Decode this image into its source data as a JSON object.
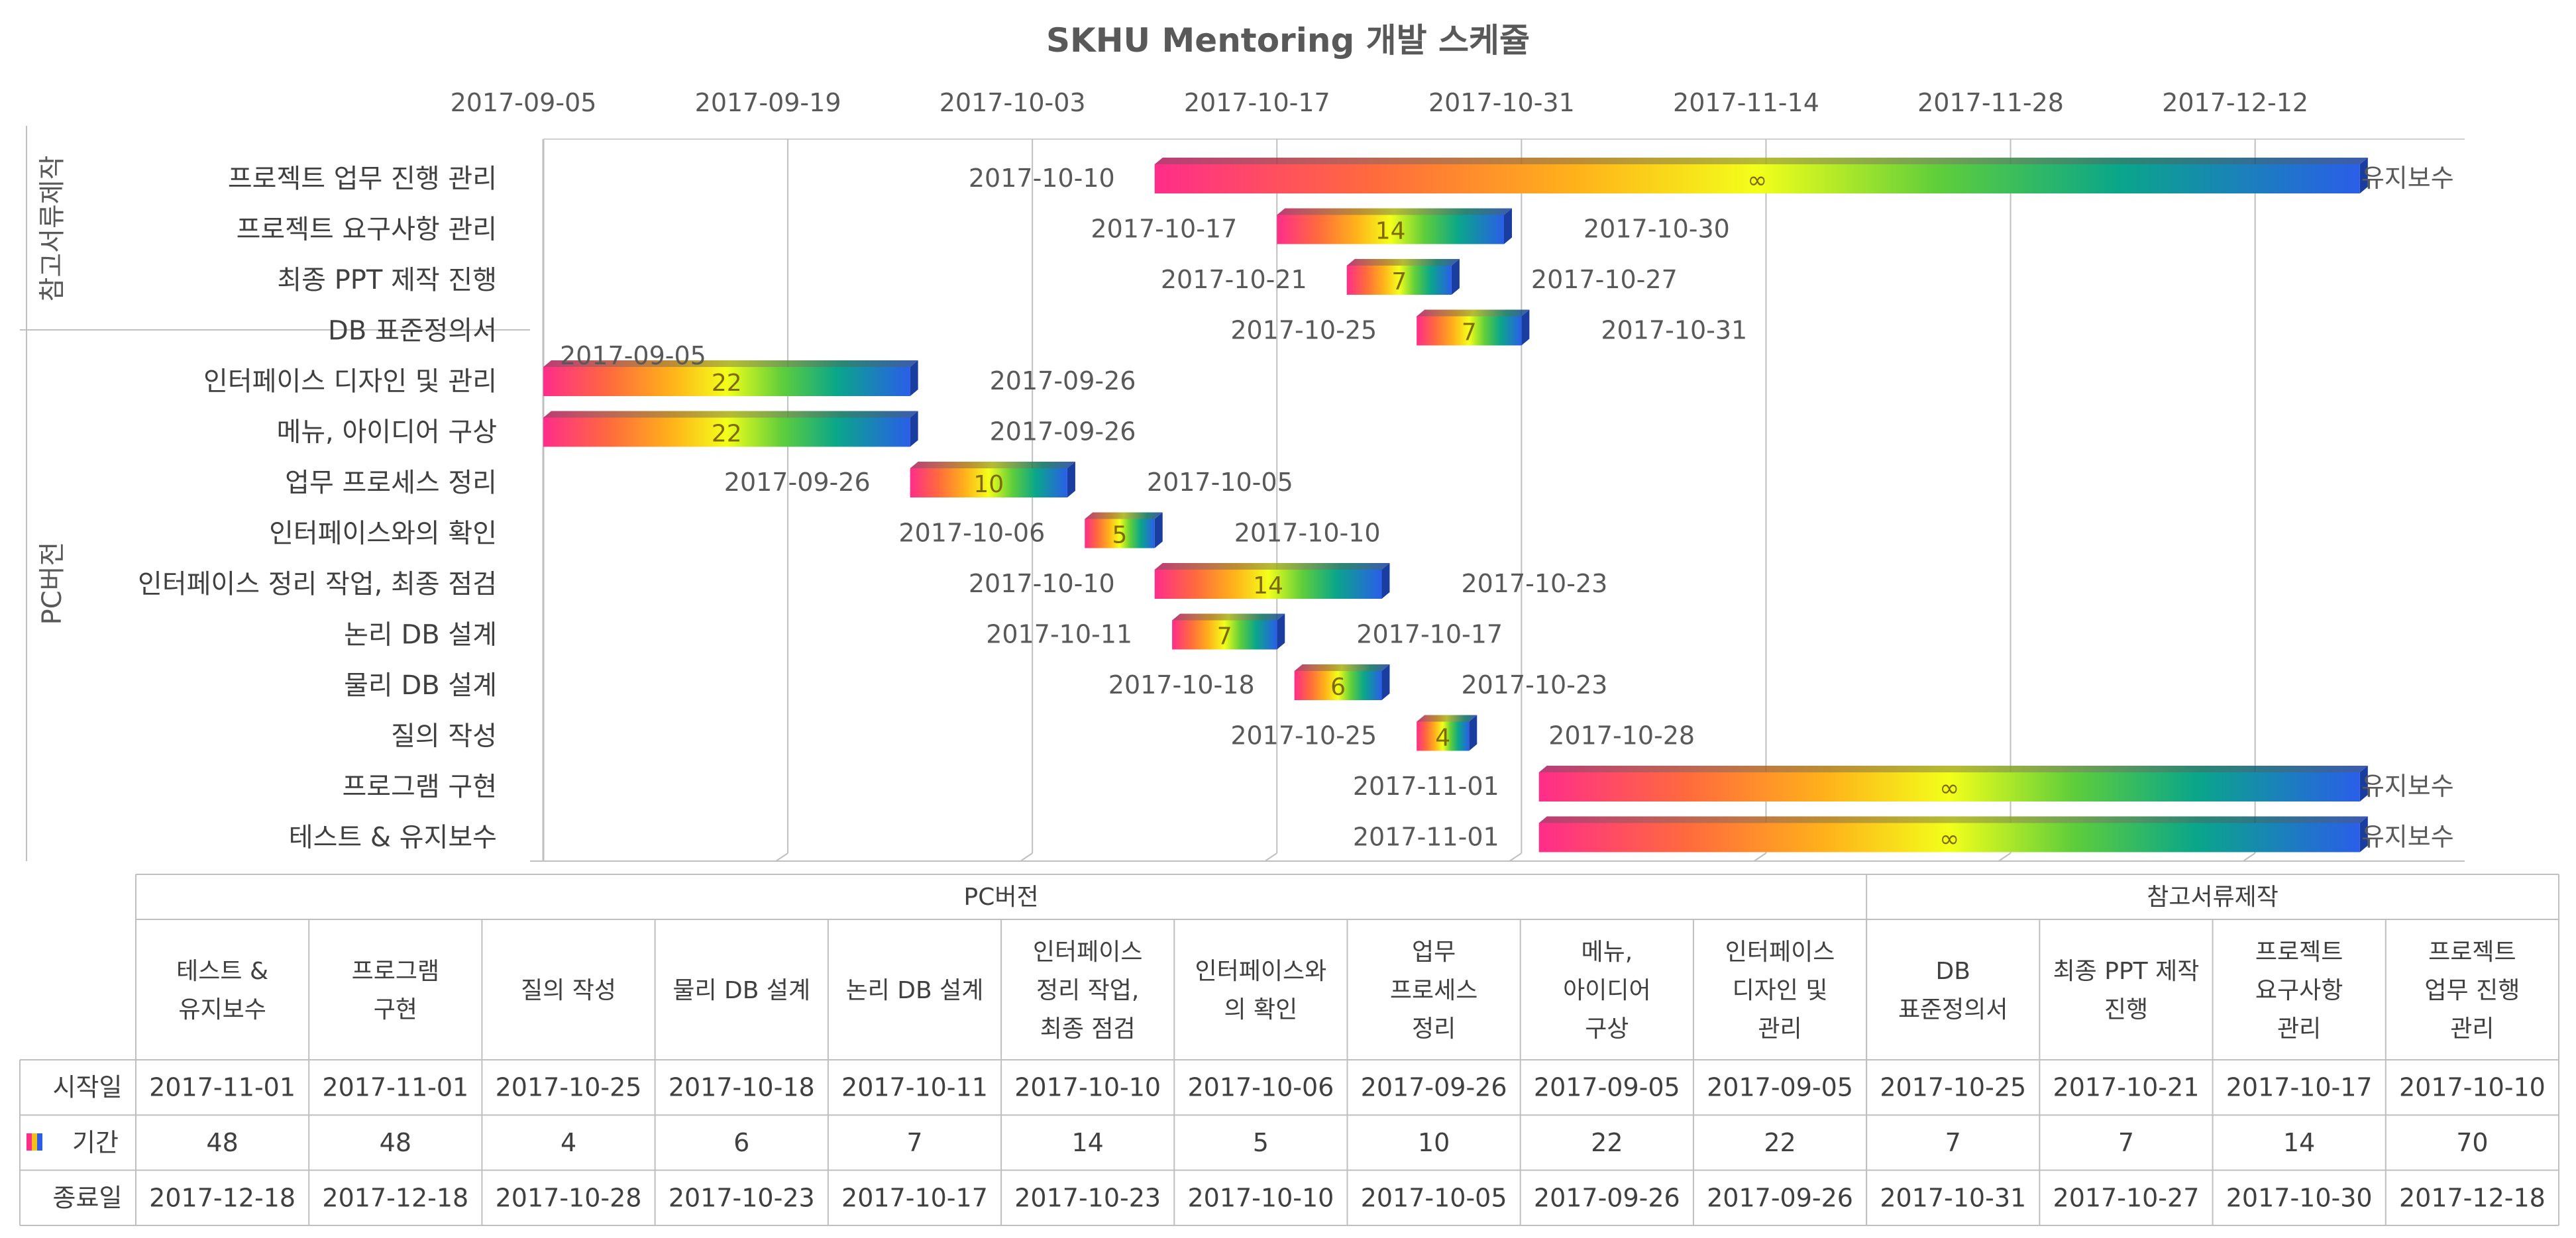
{
  "chart_data": {
    "type": "bar",
    "title": "SKHU Mentoring 개발 스케쥴",
    "x_ticks": [
      "2017-09-05",
      "2017-09-19",
      "2017-10-03",
      "2017-10-17",
      "2017-10-31",
      "2017-11-14",
      "2017-11-28",
      "2017-12-12"
    ],
    "x_range": [
      "2017-09-05",
      "2017-12-18"
    ],
    "grid": true,
    "groups": [
      {
        "name": "참고서류제작",
        "categories": [
          "프로젝트 업무 진행 관리",
          "프로젝트 요구사항 관리",
          "최종 PPT 제작 진행",
          "DB 표준정의서"
        ]
      },
      {
        "name": "PC버전",
        "categories": [
          "인터페이스 디자인 및 관리",
          "메뉴, 아이디어 구상",
          "업무 프로세스 정리",
          "인터페이스와의 확인",
          "인터페이스 정리 작업, 최종 점검",
          "논리 DB 설계",
          "물리 DB 설계",
          "질의 작성",
          "프로그램 구현",
          "테스트 & 유지보수"
        ]
      }
    ],
    "tasks": [
      {
        "name": "프로젝트 업무 진행 관리",
        "start": "2017-10-10",
        "end": "2017-12-18",
        "duration": 70,
        "value_label": "∞",
        "end_label": "유지보수"
      },
      {
        "name": "프로젝트 요구사항 관리",
        "start": "2017-10-17",
        "end": "2017-10-30",
        "duration": 14,
        "value_label": "14",
        "end_label": "2017-10-30"
      },
      {
        "name": "최종 PPT 제작 진행",
        "start": "2017-10-21",
        "end": "2017-10-27",
        "duration": 7,
        "value_label": "7",
        "end_label": "2017-10-27"
      },
      {
        "name": "DB 표준정의서",
        "start": "2017-10-25",
        "end": "2017-10-31",
        "duration": 7,
        "value_label": "7",
        "end_label": "2017-10-31"
      },
      {
        "name": "인터페이스 디자인 및 관리",
        "start": "2017-09-05",
        "end": "2017-09-26",
        "duration": 22,
        "value_label": "22",
        "end_label": "2017-09-26"
      },
      {
        "name": "메뉴, 아이디어 구상",
        "start": "2017-09-05",
        "end": "2017-09-26",
        "duration": 22,
        "value_label": "22",
        "end_label": "2017-09-26"
      },
      {
        "name": "업무 프로세스 정리",
        "start": "2017-09-26",
        "end": "2017-10-05",
        "duration": 10,
        "value_label": "10",
        "end_label": "2017-10-05"
      },
      {
        "name": "인터페이스와의 확인",
        "start": "2017-10-06",
        "end": "2017-10-10",
        "duration": 5,
        "value_label": "5",
        "end_label": "2017-10-10"
      },
      {
        "name": "인터페이스 정리 작업, 최종 점검",
        "start": "2017-10-10",
        "end": "2017-10-23",
        "duration": 14,
        "value_label": "14",
        "end_label": "2017-10-23"
      },
      {
        "name": "논리 DB 설계",
        "start": "2017-10-11",
        "end": "2017-10-17",
        "duration": 7,
        "value_label": "7",
        "end_label": "2017-10-17"
      },
      {
        "name": "물리 DB 설계",
        "start": "2017-10-18",
        "end": "2017-10-23",
        "duration": 6,
        "value_label": "6",
        "end_label": "2017-10-23"
      },
      {
        "name": "질의 작성",
        "start": "2017-10-25",
        "end": "2017-10-28",
        "duration": 4,
        "value_label": "4",
        "end_label": "2017-10-28"
      },
      {
        "name": "프로그램 구현",
        "start": "2017-11-01",
        "end": "2017-12-18",
        "duration": 48,
        "value_label": "∞",
        "end_label": "유지보수"
      },
      {
        "name": "테스트 & 유지보수",
        "start": "2017-11-01",
        "end": "2017-12-18",
        "duration": 48,
        "value_label": "∞",
        "end_label": "유지보수"
      }
    ],
    "table": {
      "group_headers": [
        {
          "name": "PC버전",
          "span": 10
        },
        {
          "name": "참고서류제작",
          "span": 4
        }
      ],
      "columns": [
        {
          "lines": [
            "테스트 &",
            "유지보수"
          ],
          "start": "2017-11-01",
          "duration": "48",
          "end": "2017-12-18"
        },
        {
          "lines": [
            "프로그램",
            "구현"
          ],
          "start": "2017-11-01",
          "duration": "48",
          "end": "2017-12-18"
        },
        {
          "lines": [
            "질의 작성"
          ],
          "start": "2017-10-25",
          "duration": "4",
          "end": "2017-10-28"
        },
        {
          "lines": [
            "물리 DB 설계"
          ],
          "start": "2017-10-18",
          "duration": "6",
          "end": "2017-10-23"
        },
        {
          "lines": [
            "논리 DB 설계"
          ],
          "start": "2017-10-11",
          "duration": "7",
          "end": "2017-10-17"
        },
        {
          "lines": [
            "인터페이스",
            "정리 작업,",
            "최종 점검"
          ],
          "start": "2017-10-10",
          "duration": "14",
          "end": "2017-10-23"
        },
        {
          "lines": [
            "인터페이스와",
            "의 확인"
          ],
          "start": "2017-10-06",
          "duration": "5",
          "end": "2017-10-10"
        },
        {
          "lines": [
            "업무",
            "프로세스",
            "정리"
          ],
          "start": "2017-09-26",
          "duration": "10",
          "end": "2017-10-05"
        },
        {
          "lines": [
            "메뉴,",
            "아이디어",
            "구상"
          ],
          "start": "2017-09-05",
          "duration": "22",
          "end": "2017-09-26"
        },
        {
          "lines": [
            "인터페이스",
            "디자인 및",
            "관리"
          ],
          "start": "2017-09-05",
          "duration": "22",
          "end": "2017-09-26"
        },
        {
          "lines": [
            "DB",
            "표준정의서"
          ],
          "start": "2017-10-25",
          "duration": "7",
          "end": "2017-10-31"
        },
        {
          "lines": [
            "최종 PPT 제작",
            "진행"
          ],
          "start": "2017-10-21",
          "duration": "7",
          "end": "2017-10-27"
        },
        {
          "lines": [
            "프로젝트",
            "요구사항",
            "관리"
          ],
          "start": "2017-10-17",
          "duration": "14",
          "end": "2017-10-30"
        },
        {
          "lines": [
            "프로젝트",
            "업무 진행",
            "관리"
          ],
          "start": "2017-10-10",
          "duration": "70",
          "end": "2017-12-18"
        }
      ],
      "row_labels": {
        "start": "시작일",
        "duration": "기간",
        "end": "종료일"
      }
    }
  }
}
